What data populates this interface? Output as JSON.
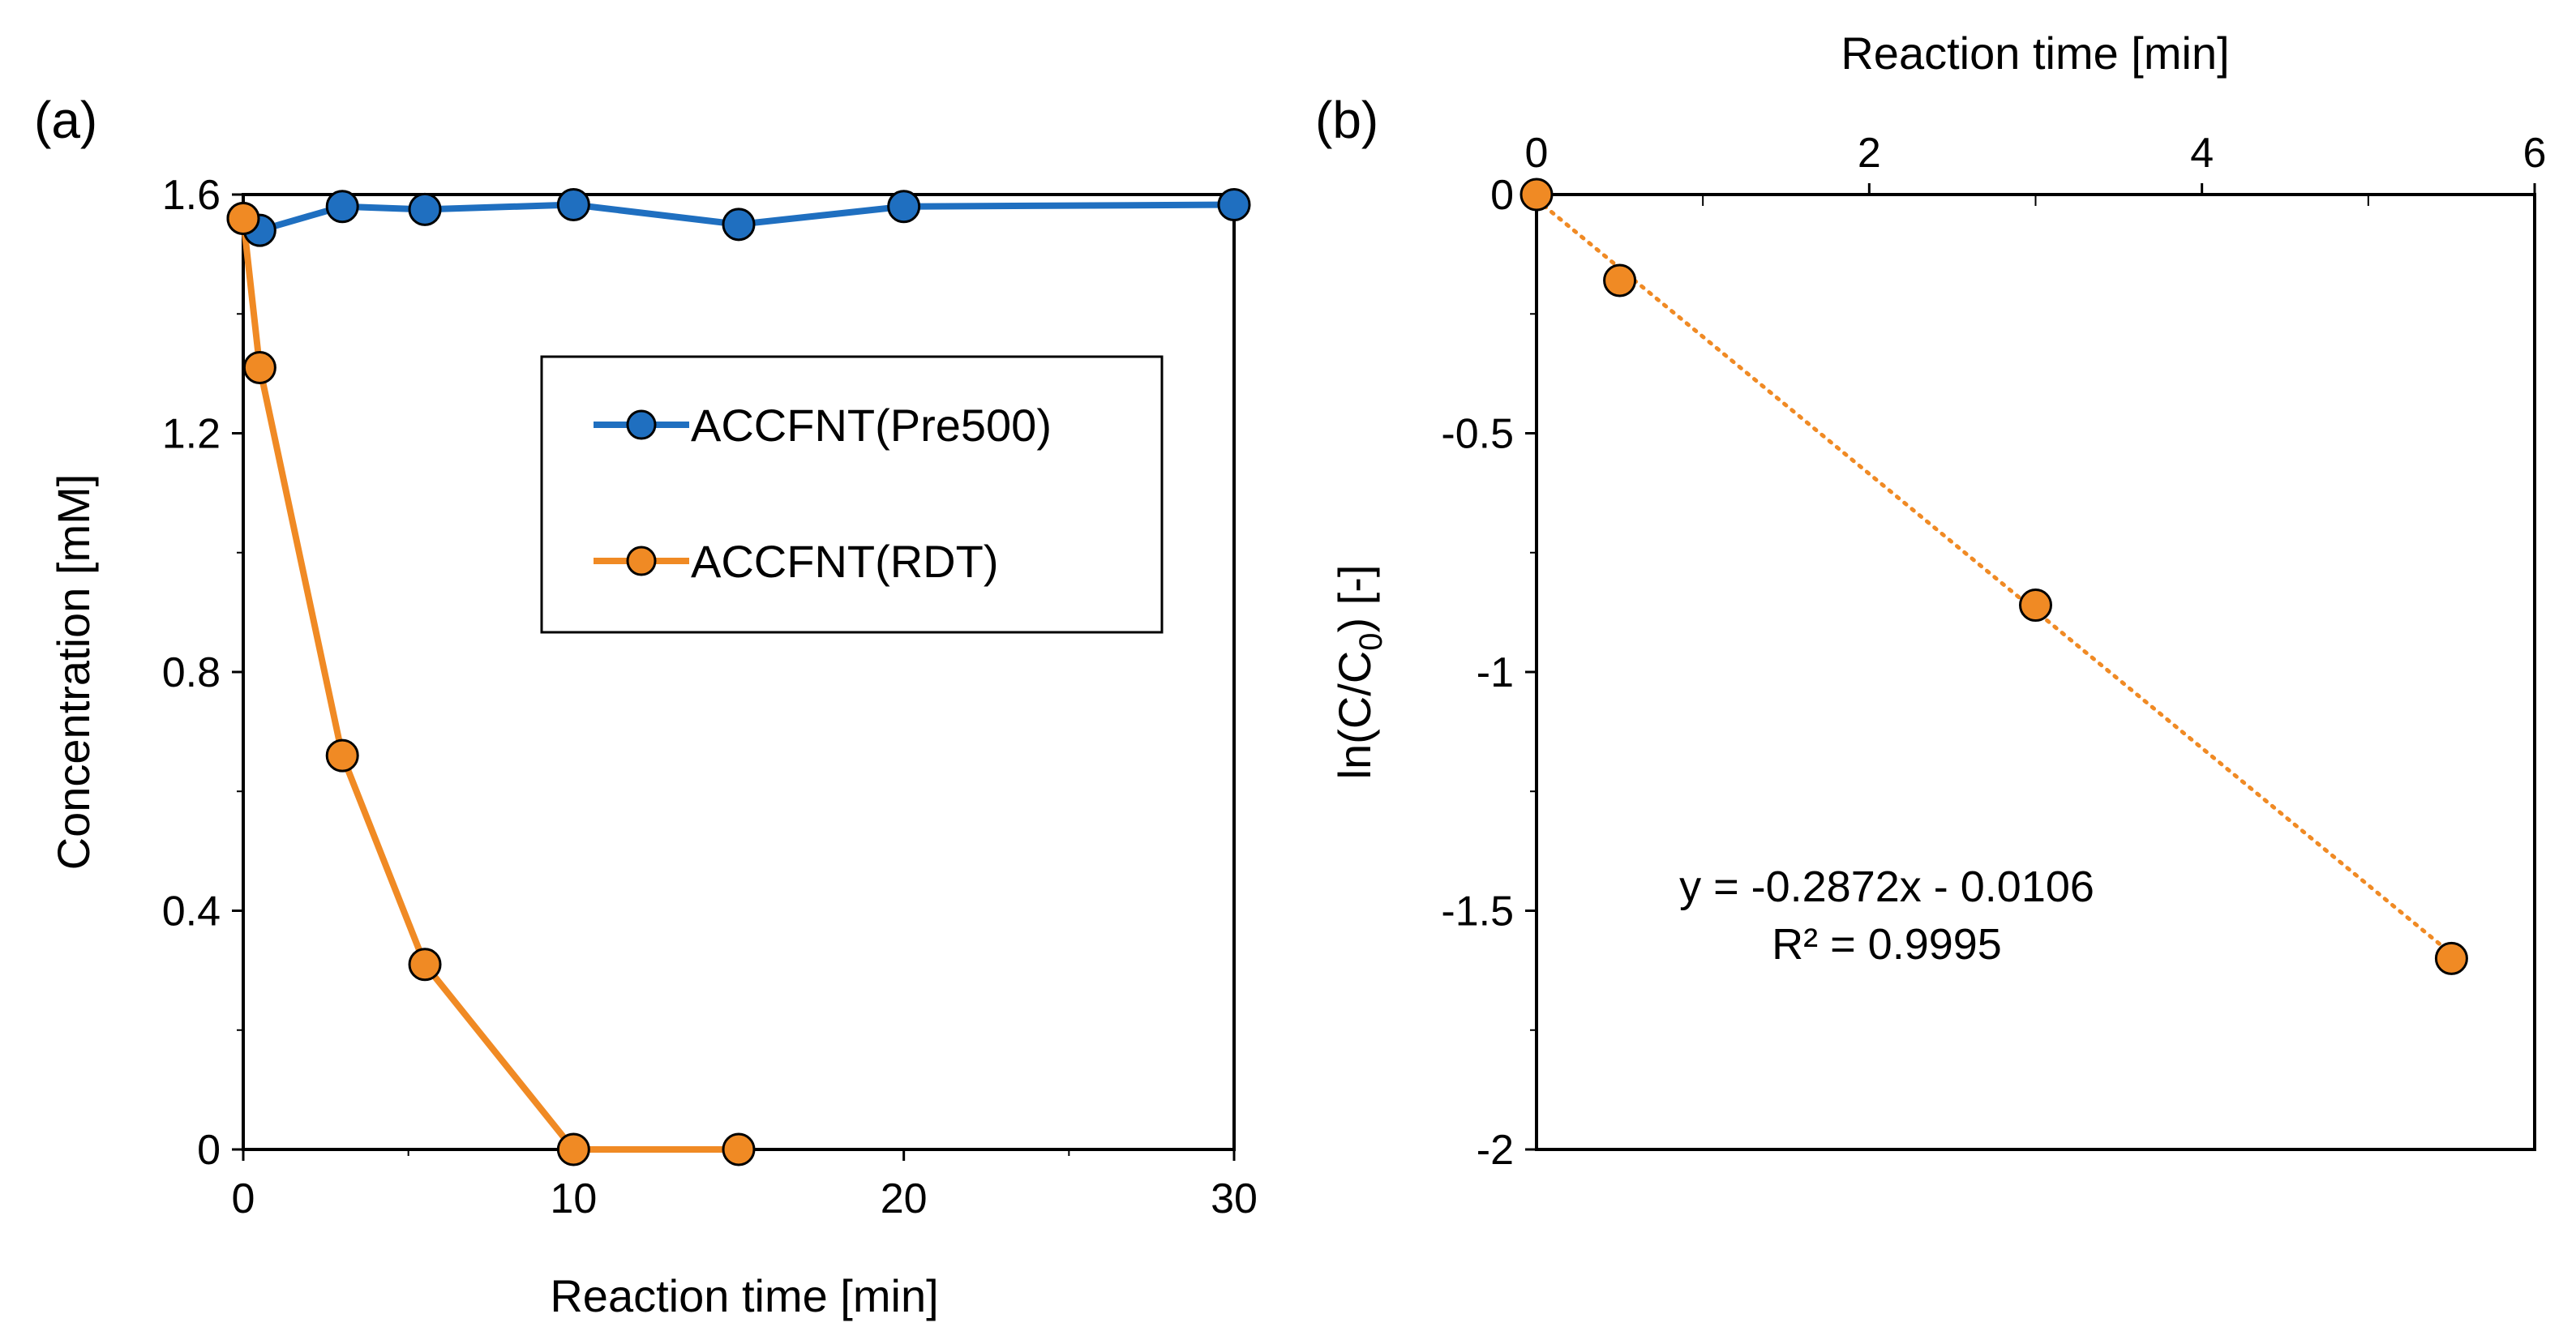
{
  "chart_data": [
    {
      "panel": "(a)",
      "type": "line",
      "xlabel": "Reaction time [min]",
      "ylabel": "Concentration [mM]",
      "xlim": [
        0,
        30
      ],
      "ylim": [
        0,
        1.6
      ],
      "xticks": [
        "0",
        "10",
        "20",
        "30"
      ],
      "yticks": [
        "0",
        "0.4",
        "0.8",
        "1.2",
        "1.6"
      ],
      "legend_position": "upper-middle",
      "series": [
        {
          "name": "ACCFNT(Pre500)",
          "color": "#1F6FC0",
          "x": [
            0,
            0.5,
            3,
            5.5,
            10,
            15,
            20,
            30
          ],
          "y": [
            1.56,
            1.54,
            1.58,
            1.575,
            1.583,
            1.55,
            1.58,
            1.583
          ]
        },
        {
          "name": "ACCFNT(RDT)",
          "color": "#F08A24",
          "x": [
            0,
            0.5,
            3,
            5.5,
            10,
            15
          ],
          "y": [
            1.56,
            1.31,
            0.66,
            0.31,
            0,
            0
          ]
        }
      ]
    },
    {
      "panel": "(b)",
      "type": "scatter",
      "xlabel": "Reaction time [min]",
      "xlabel_position": "top",
      "ylabel_main": "ln(C/C",
      "ylabel_sub": "0",
      "ylabel_tail": ") [-]",
      "xlim": [
        0,
        6
      ],
      "ylim": [
        -2,
        0
      ],
      "xticks": [
        "0",
        "2",
        "4",
        "6"
      ],
      "yticks": [
        "0",
        "-0.5",
        "-1",
        "-1.5",
        "-2"
      ],
      "series": [
        {
          "name": "ACCFNT(RDT)",
          "color": "#F08A24",
          "x": [
            0,
            0.5,
            3,
            5.5
          ],
          "y": [
            0,
            -0.18,
            -0.86,
            -1.6
          ]
        }
      ],
      "trendline": {
        "slope": -0.2872,
        "intercept": -0.0106,
        "style": "dotted",
        "color": "#F08A24"
      },
      "equation": "y = -0.2872x - 0.0106",
      "r_squared": "R² = 0.9995"
    }
  ]
}
